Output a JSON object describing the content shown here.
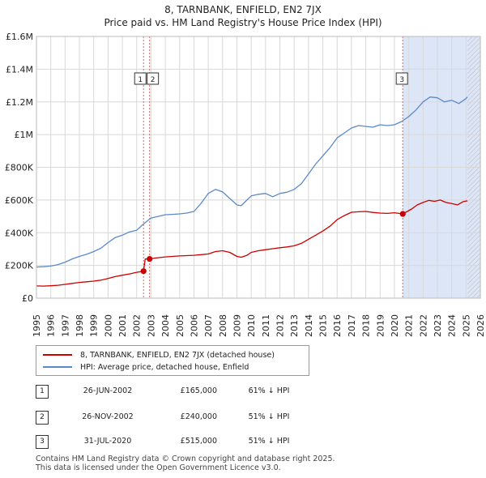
{
  "title_line1": "8, TARNBANK, ENFIELD, EN2 7JX",
  "title_line2": "Price paid vs. HM Land Registry's House Price Index (HPI)",
  "colors": {
    "property": "#cc0000",
    "hpi": "#5b8ac7",
    "shade": "#dde6f7",
    "grid": "#d8d8d8",
    "vline": "#e06060"
  },
  "chart_data": {
    "type": "line",
    "title": "8, TARNBANK, ENFIELD, EN2 7JX — Price paid vs. HM Land Registry's House Price Index (HPI)",
    "xlim": [
      1995,
      2026
    ],
    "ylim": [
      0,
      1600000
    ],
    "y_ticks": [
      0,
      200000,
      400000,
      600000,
      800000,
      1000000,
      1200000,
      1400000,
      1600000
    ],
    "y_tick_labels": [
      "£0",
      "£200K",
      "£400K",
      "£600K",
      "£800K",
      "£1M",
      "£1.2M",
      "£1.4M",
      "£1.6M"
    ],
    "x_ticks": [
      1995,
      1996,
      1997,
      1998,
      1999,
      2000,
      2001,
      2002,
      2003,
      2004,
      2005,
      2006,
      2007,
      2008,
      2009,
      2010,
      2011,
      2012,
      2013,
      2014,
      2015,
      2016,
      2017,
      2018,
      2019,
      2020,
      2021,
      2022,
      2023,
      2024,
      2025,
      2026
    ],
    "x_tick_labels": [
      "1995",
      "1996",
      "1997",
      "1998",
      "1999",
      "2000",
      "2001",
      "2002",
      "2003",
      "2004",
      "2005",
      "2006",
      "2007",
      "2008",
      "2009",
      "2010",
      "2011",
      "2012",
      "2013",
      "2014",
      "2015",
      "2016",
      "2017",
      "2018",
      "2019",
      "2020",
      "2021",
      "2022",
      "2023",
      "2024",
      "2025",
      "2026"
    ],
    "shaded_x_range": [
      2020.58,
      2026
    ],
    "hatched_x_range": [
      2025.1,
      2026
    ],
    "series": [
      {
        "name": "8, TARNBANK, ENFIELD, EN2 7JX (detached house)",
        "color": "#cc0000",
        "x": [
          1995.0,
          1995.5,
          1996.0,
          1996.5,
          1997.0,
          1997.5,
          1998.0,
          1998.5,
          1999.0,
          1999.5,
          2000.0,
          2000.5,
          2001.0,
          2001.5,
          2002.0,
          2002.48,
          2002.6,
          2002.9,
          2003.3,
          2004.0,
          2004.5,
          2005.0,
          2006.0,
          2007.0,
          2007.5,
          2008.0,
          2008.5,
          2009.0,
          2009.3,
          2009.7,
          2010.0,
          2010.5,
          2011.0,
          2011.5,
          2012.0,
          2012.5,
          2013.0,
          2013.5,
          2014.0,
          2014.5,
          2015.0,
          2015.5,
          2016.0,
          2016.5,
          2017.0,
          2017.5,
          2018.0,
          2018.5,
          2019.0,
          2019.5,
          2020.0,
          2020.58,
          2020.9,
          2021.2,
          2021.6,
          2022.0,
          2022.4,
          2022.8,
          2023.2,
          2023.6,
          2024.0,
          2024.4,
          2024.8,
          2025.1
        ],
        "values": [
          75000,
          74000,
          76000,
          79000,
          84000,
          90000,
          96000,
          100000,
          104000,
          110000,
          120000,
          132000,
          140000,
          148000,
          158000,
          165000,
          240000,
          240000,
          245000,
          252000,
          255000,
          258000,
          262000,
          270000,
          285000,
          290000,
          280000,
          255000,
          250000,
          262000,
          280000,
          290000,
          296000,
          302000,
          308000,
          313000,
          320000,
          335000,
          360000,
          385000,
          410000,
          440000,
          480000,
          505000,
          525000,
          528000,
          530000,
          524000,
          520000,
          518000,
          522000,
          515000,
          530000,
          545000,
          570000,
          585000,
          598000,
          592000,
          600000,
          585000,
          578000,
          570000,
          590000,
          595000
        ]
      },
      {
        "name": "HPI: Average price, detached house, Enfield",
        "color": "#5b8ac7",
        "x": [
          1995.0,
          1995.5,
          1996.0,
          1996.5,
          1997.0,
          1997.5,
          1998.0,
          1998.5,
          1999.0,
          1999.5,
          2000.0,
          2000.5,
          2001.0,
          2001.5,
          2002.0,
          2002.5,
          2003.0,
          2003.5,
          2004.0,
          2004.5,
          2005.0,
          2005.5,
          2006.0,
          2006.5,
          2007.0,
          2007.5,
          2008.0,
          2008.5,
          2009.0,
          2009.3,
          2009.7,
          2010.0,
          2010.5,
          2011.0,
          2011.5,
          2012.0,
          2012.5,
          2013.0,
          2013.5,
          2014.0,
          2014.5,
          2015.0,
          2015.5,
          2016.0,
          2016.5,
          2017.0,
          2017.5,
          2018.0,
          2018.5,
          2019.0,
          2019.5,
          2020.0,
          2020.5,
          2021.0,
          2021.5,
          2022.0,
          2022.5,
          2023.0,
          2023.5,
          2024.0,
          2024.5,
          2025.0,
          2025.1
        ],
        "values": [
          190000,
          192000,
          196000,
          205000,
          220000,
          240000,
          255000,
          268000,
          285000,
          305000,
          340000,
          370000,
          385000,
          405000,
          415000,
          455000,
          490000,
          500000,
          510000,
          512000,
          515000,
          520000,
          530000,
          580000,
          640000,
          665000,
          650000,
          610000,
          570000,
          565000,
          600000,
          625000,
          635000,
          640000,
          620000,
          640000,
          648000,
          665000,
          700000,
          760000,
          820000,
          870000,
          920000,
          980000,
          1010000,
          1040000,
          1055000,
          1050000,
          1045000,
          1060000,
          1055000,
          1060000,
          1080000,
          1110000,
          1150000,
          1200000,
          1230000,
          1225000,
          1200000,
          1210000,
          1190000,
          1220000,
          1230000
        ]
      }
    ],
    "markers": [
      {
        "label": "1",
        "x": 2002.48,
        "value": 165000
      },
      {
        "label": "2",
        "x": 2002.9,
        "value": 240000
      },
      {
        "label": "3",
        "x": 2020.58,
        "value": 515000
      }
    ]
  },
  "legend": {
    "property_label": "8, TARNBANK, ENFIELD, EN2 7JX (detached house)",
    "hpi_label": "HPI: Average price, detached house, Enfield"
  },
  "transactions": [
    {
      "num": "1",
      "date": "26-JUN-2002",
      "price": "£165,000",
      "hpi": "61% ↓ HPI"
    },
    {
      "num": "2",
      "date": "26-NOV-2002",
      "price": "£240,000",
      "hpi": "51% ↓ HPI"
    },
    {
      "num": "3",
      "date": "31-JUL-2020",
      "price": "£515,000",
      "hpi": "51% ↓ HPI"
    }
  ],
  "footer": {
    "line1": "Contains HM Land Registry data © Crown copyright and database right 2025.",
    "line2": "This data is licensed under the Open Government Licence v3.0."
  }
}
